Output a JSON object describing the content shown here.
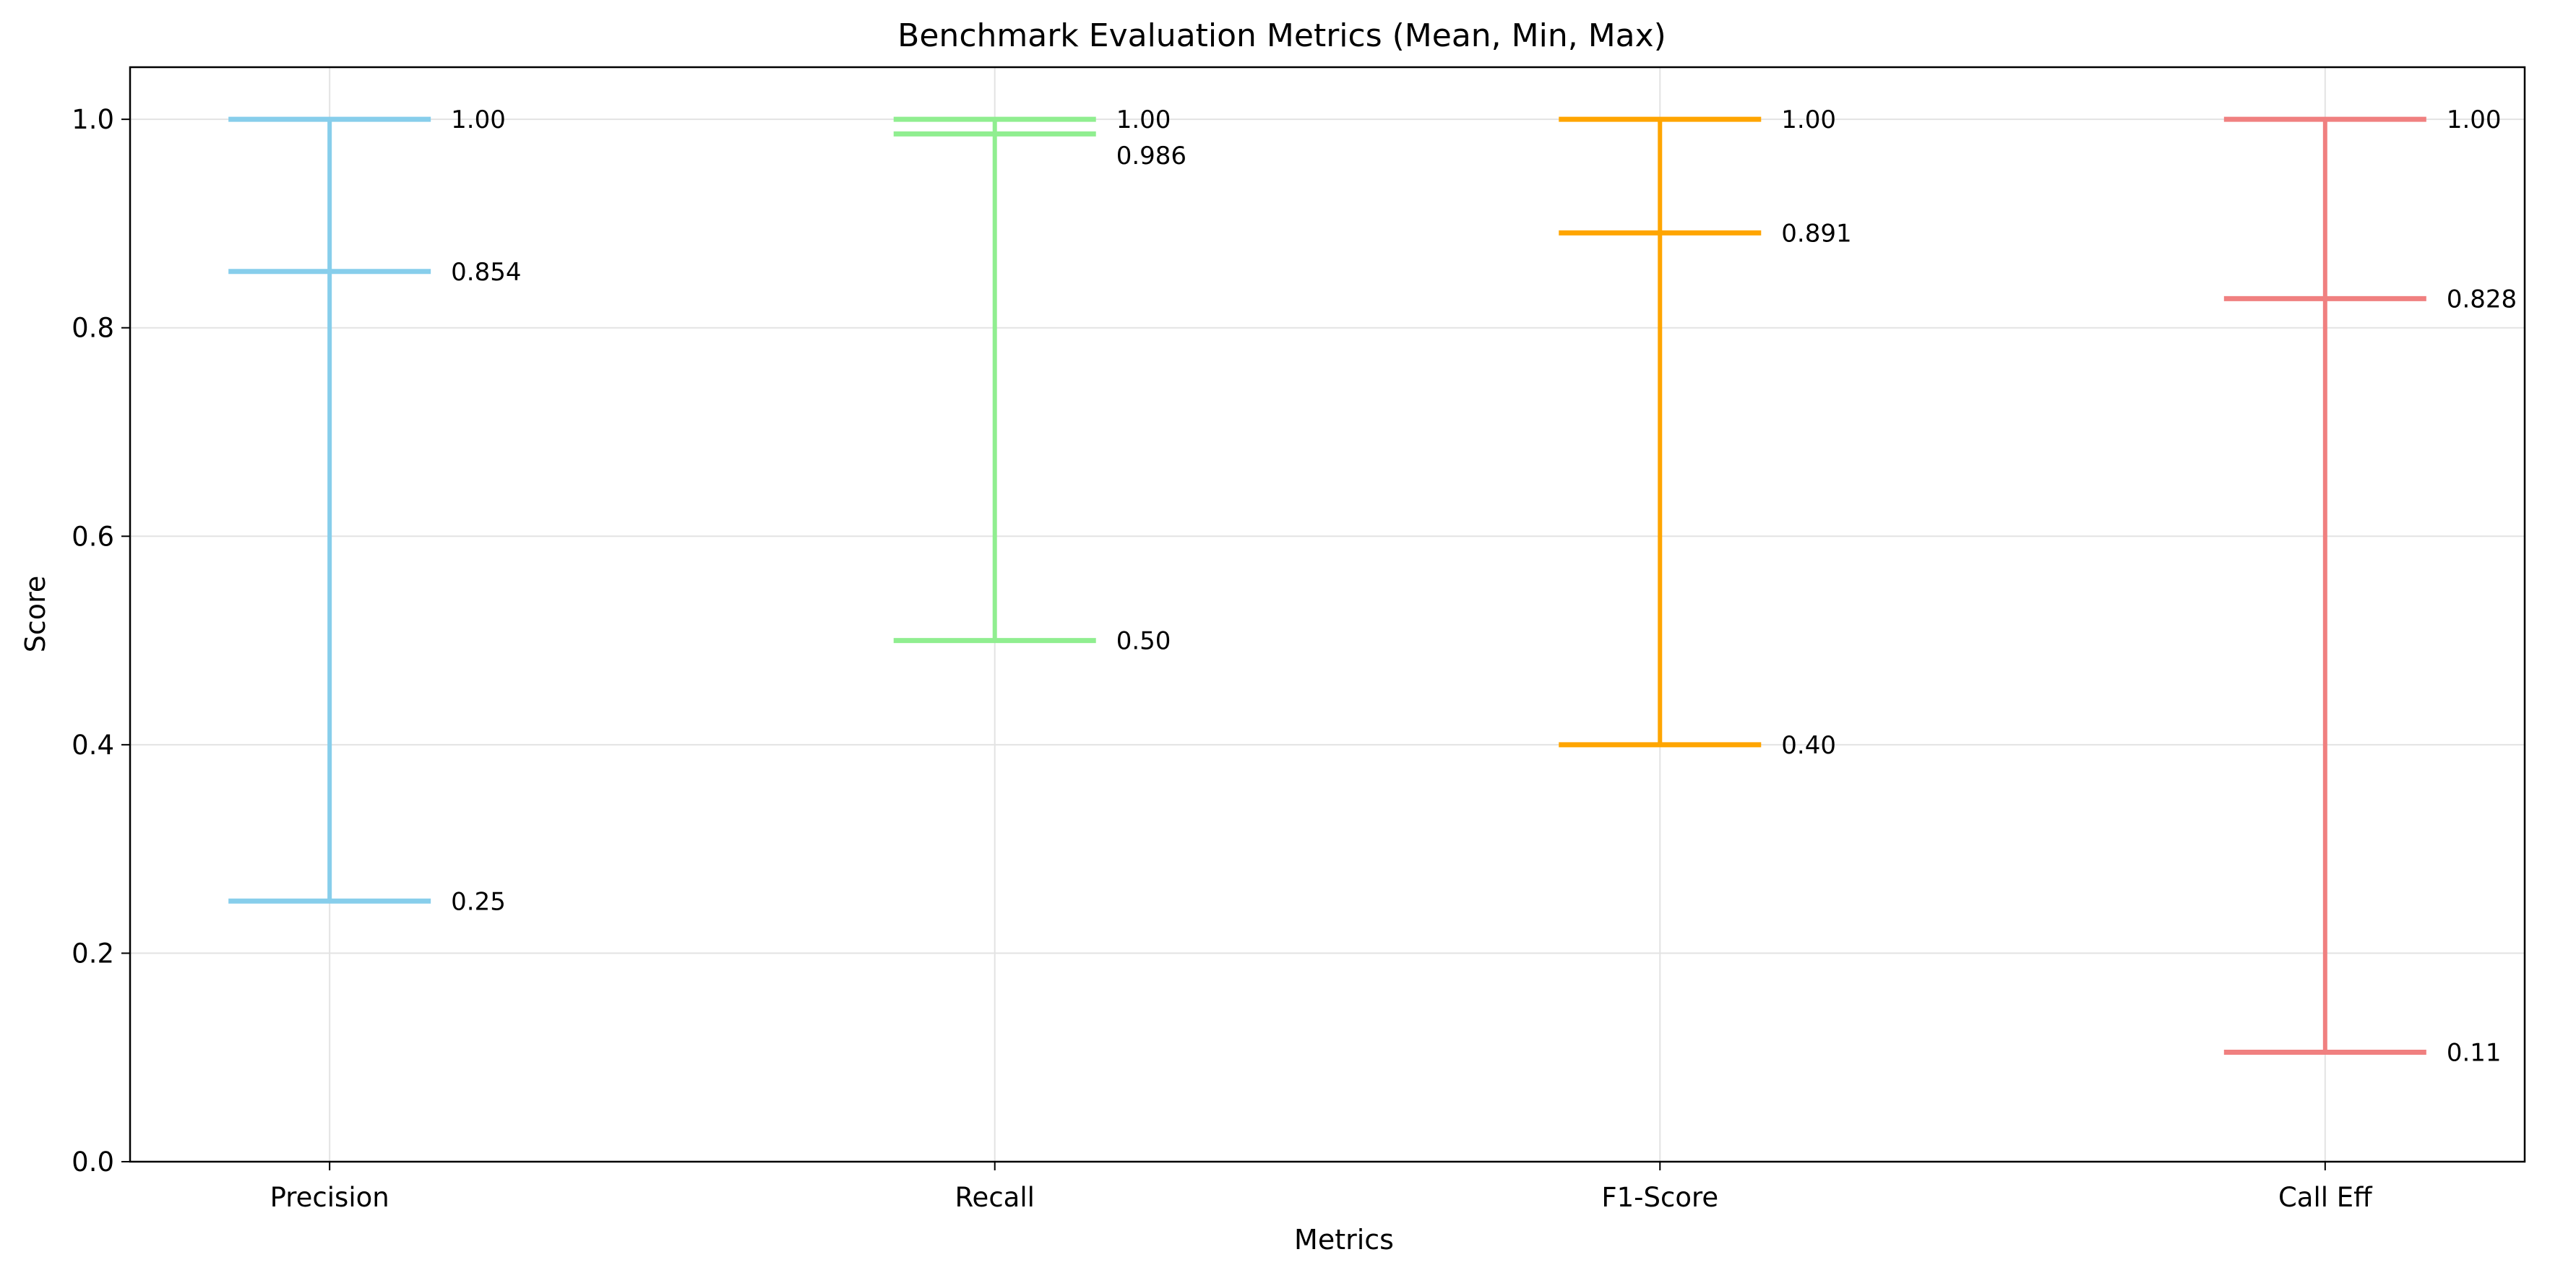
{
  "chart_data": {
    "type": "errorbar",
    "title": "Benchmark Evaluation Metrics (Mean, Min, Max)",
    "xlabel": "Metrics",
    "ylabel": "Score",
    "ylim": [
      0,
      1.05
    ],
    "yticks": [
      0.0,
      0.2,
      0.4,
      0.6,
      0.8,
      1.0
    ],
    "ytick_labels": [
      "0.0",
      "0.2",
      "0.4",
      "0.6",
      "0.8",
      "1.0"
    ],
    "grid": true,
    "categories": [
      "Precision",
      "Recall",
      "F1-Score",
      "Call Eff"
    ],
    "series": [
      {
        "category": "Precision",
        "color": "#87CEEB",
        "min": 0.25,
        "mean": 0.854,
        "max": 1.0,
        "min_label": "0.25",
        "mean_label": "0.854",
        "max_label": "1.00"
      },
      {
        "category": "Recall",
        "color": "#90EE90",
        "min": 0.5,
        "mean": 0.986,
        "max": 1.0,
        "min_label": "0.50",
        "mean_label": "0.986",
        "max_label": "1.00"
      },
      {
        "category": "F1-Score",
        "color": "#FFA500",
        "min": 0.4,
        "mean": 0.891,
        "max": 1.0,
        "min_label": "0.40",
        "mean_label": "0.891",
        "max_label": "1.00"
      },
      {
        "category": "Call Eff",
        "color": "#F08080",
        "min": 0.105,
        "mean": 0.828,
        "max": 1.0,
        "min_label": "0.11",
        "mean_label": "0.828",
        "max_label": "1.00"
      }
    ]
  }
}
